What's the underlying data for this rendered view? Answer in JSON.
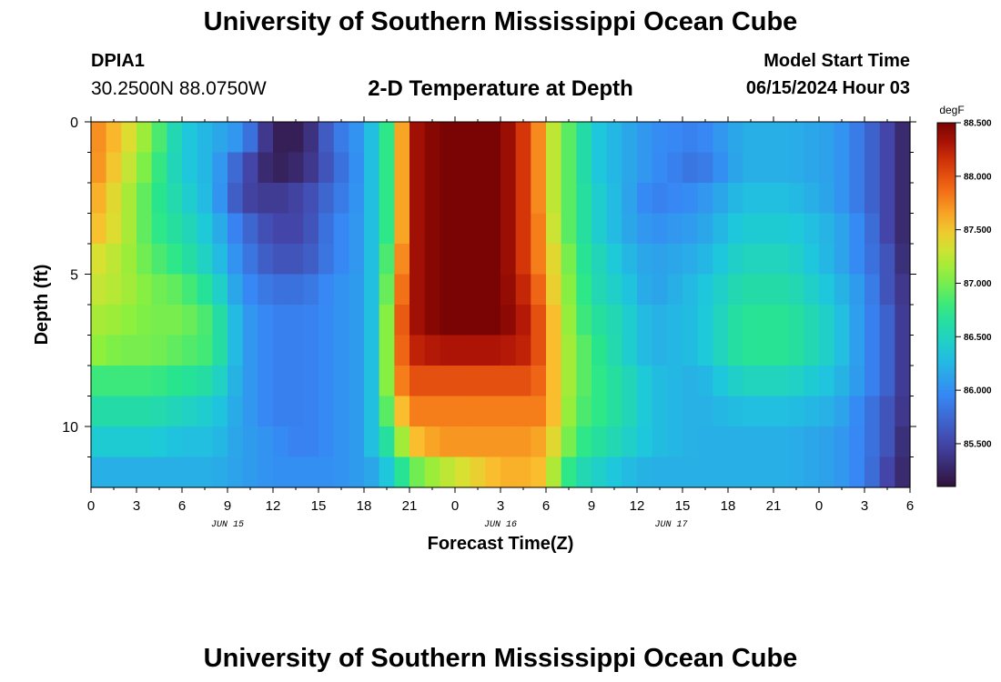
{
  "header": {
    "title": "University of Southern Mississippi Ocean Cube",
    "station_id": "DPIA1",
    "coords": "30.2500N  88.0750W",
    "plot_title": "2-D Temperature at Depth",
    "model_start_label": "Model Start Time",
    "model_start_value": "06/15/2024 Hour 03"
  },
  "footer": {
    "title": "University of Southern Mississippi Ocean Cube"
  },
  "chart_data": {
    "type": "heatmap",
    "title": "2-D Temperature at Depth",
    "xlabel": "Forecast Time(Z)",
    "ylabel": "Depth (ft)",
    "x_ticks": [
      "0",
      "3",
      "6",
      "9",
      "12",
      "15",
      "18",
      "21",
      "0",
      "3",
      "6",
      "9",
      "12",
      "15",
      "18",
      "21",
      "0",
      "3",
      "6"
    ],
    "date_labels": [
      {
        "text": "JUN 15",
        "at_tick": 6
      },
      {
        "text": "JUN 16",
        "at_tick": 18
      },
      {
        "text": "JUN 17",
        "at_tick": 25.5
      }
    ],
    "y_ticks": [
      "0",
      "5",
      "10"
    ],
    "ylim": [
      0,
      12
    ],
    "x_range_hours": [
      0,
      54
    ],
    "colorbar": {
      "unit": "degF",
      "ticks": [
        "88.500",
        "88.000",
        "87.500",
        "87.000",
        "86.500",
        "86.000",
        "85.500"
      ],
      "range": [
        85.1,
        88.5
      ]
    },
    "depth_rows": [
      0.5,
      1.5,
      2.5,
      3.5,
      4.5,
      5.5,
      6.5,
      7.5,
      8.5,
      9.5,
      10.5,
      11.5
    ],
    "time_knots_hours": [
      0,
      2,
      4,
      6,
      8,
      10,
      12,
      14,
      16,
      18,
      19,
      20,
      21,
      23,
      25,
      27,
      29,
      30,
      31,
      32,
      33,
      35,
      37,
      40,
      43,
      46,
      49,
      51,
      52.5,
      54
    ],
    "values_degF": [
      [
        87.8,
        87.5,
        87.0,
        86.4,
        86.2,
        86.0,
        85.2,
        85.2,
        85.8,
        86.1,
        86.5,
        87.0,
        88.3,
        88.5,
        88.5,
        88.5,
        88.0,
        87.5,
        87.0,
        86.8,
        86.4,
        86.2,
        86.0,
        85.9,
        86.2,
        86.2,
        86.1,
        85.8,
        85.5,
        85.2
      ],
      [
        87.8,
        87.4,
        86.9,
        86.4,
        86.2,
        85.6,
        85.2,
        85.3,
        85.7,
        86.1,
        86.5,
        87.0,
        88.3,
        88.5,
        88.5,
        88.5,
        88.0,
        87.5,
        87.0,
        86.8,
        86.4,
        86.2,
        86.0,
        85.8,
        86.2,
        86.2,
        86.1,
        85.8,
        85.5,
        85.2
      ],
      [
        87.7,
        87.3,
        86.8,
        86.5,
        86.2,
        85.5,
        85.4,
        85.5,
        85.8,
        86.1,
        86.5,
        87.0,
        88.3,
        88.5,
        88.5,
        88.5,
        88.0,
        87.5,
        87.0,
        86.8,
        86.5,
        86.2,
        85.9,
        86.0,
        86.3,
        86.3,
        86.1,
        85.8,
        85.5,
        85.2
      ],
      [
        87.6,
        87.3,
        86.8,
        86.6,
        86.3,
        85.8,
        85.5,
        85.5,
        85.9,
        86.1,
        86.5,
        87.0,
        88.3,
        88.5,
        88.5,
        88.5,
        88.0,
        87.6,
        87.0,
        86.8,
        86.5,
        86.2,
        86.0,
        86.1,
        86.4,
        86.4,
        86.2,
        85.9,
        85.5,
        85.2
      ],
      [
        87.4,
        87.2,
        86.9,
        86.7,
        86.4,
        85.9,
        85.6,
        85.6,
        85.9,
        86.1,
        86.5,
        87.2,
        88.3,
        88.5,
        88.5,
        88.5,
        88.0,
        87.6,
        87.2,
        86.8,
        86.6,
        86.3,
        86.1,
        86.2,
        86.5,
        86.5,
        86.2,
        85.9,
        85.6,
        85.2
      ],
      [
        87.3,
        87.2,
        87.0,
        86.9,
        86.6,
        86.0,
        85.8,
        85.8,
        86.0,
        86.1,
        86.5,
        87.4,
        88.3,
        88.5,
        88.5,
        88.5,
        88.1,
        87.7,
        87.2,
        86.9,
        86.6,
        86.4,
        86.1,
        86.3,
        86.6,
        86.6,
        86.3,
        86.0,
        85.6,
        85.3
      ],
      [
        87.2,
        87.1,
        87.0,
        87.0,
        86.8,
        86.1,
        85.9,
        85.9,
        86.0,
        86.1,
        86.5,
        87.6,
        88.3,
        88.5,
        88.5,
        88.5,
        88.2,
        87.8,
        87.3,
        86.9,
        86.7,
        86.5,
        86.2,
        86.3,
        86.7,
        86.7,
        86.4,
        86.0,
        85.7,
        85.3
      ],
      [
        87.1,
        87.0,
        87.0,
        86.9,
        86.8,
        86.1,
        85.9,
        85.9,
        86.0,
        86.1,
        86.5,
        87.6,
        88.2,
        88.3,
        88.3,
        88.3,
        88.2,
        87.8,
        87.3,
        87.0,
        86.8,
        86.5,
        86.2,
        86.3,
        86.7,
        86.7,
        86.4,
        86.0,
        85.7,
        85.3
      ],
      [
        86.8,
        86.8,
        86.8,
        86.7,
        86.6,
        86.1,
        85.9,
        85.9,
        86.0,
        86.1,
        86.5,
        87.6,
        88.0,
        88.0,
        88.0,
        88.0,
        88.0,
        87.8,
        87.3,
        87.0,
        86.8,
        86.6,
        86.3,
        86.2,
        86.5,
        86.5,
        86.3,
        86.0,
        85.7,
        85.3
      ],
      [
        86.6,
        86.6,
        86.6,
        86.5,
        86.4,
        86.1,
        85.9,
        85.9,
        86.0,
        86.1,
        86.5,
        87.3,
        87.8,
        87.8,
        87.8,
        87.8,
        87.8,
        87.8,
        87.3,
        86.9,
        86.8,
        86.6,
        86.3,
        86.2,
        86.3,
        86.3,
        86.2,
        85.9,
        85.6,
        85.3
      ],
      [
        86.4,
        86.4,
        86.4,
        86.3,
        86.3,
        86.1,
        86.0,
        85.9,
        86.0,
        86.1,
        86.5,
        86.8,
        87.5,
        87.7,
        87.7,
        87.7,
        87.7,
        87.6,
        87.2,
        86.8,
        86.7,
        86.5,
        86.3,
        86.2,
        86.2,
        86.2,
        86.1,
        85.9,
        85.6,
        85.2
      ],
      [
        86.2,
        86.2,
        86.2,
        86.2,
        86.2,
        86.1,
        86.0,
        86.0,
        86.0,
        86.1,
        86.2,
        86.5,
        86.9,
        87.2,
        87.4,
        87.6,
        87.6,
        87.5,
        86.9,
        86.6,
        86.5,
        86.3,
        86.2,
        86.2,
        86.2,
        86.2,
        86.1,
        85.9,
        85.5,
        85.2
      ]
    ]
  }
}
